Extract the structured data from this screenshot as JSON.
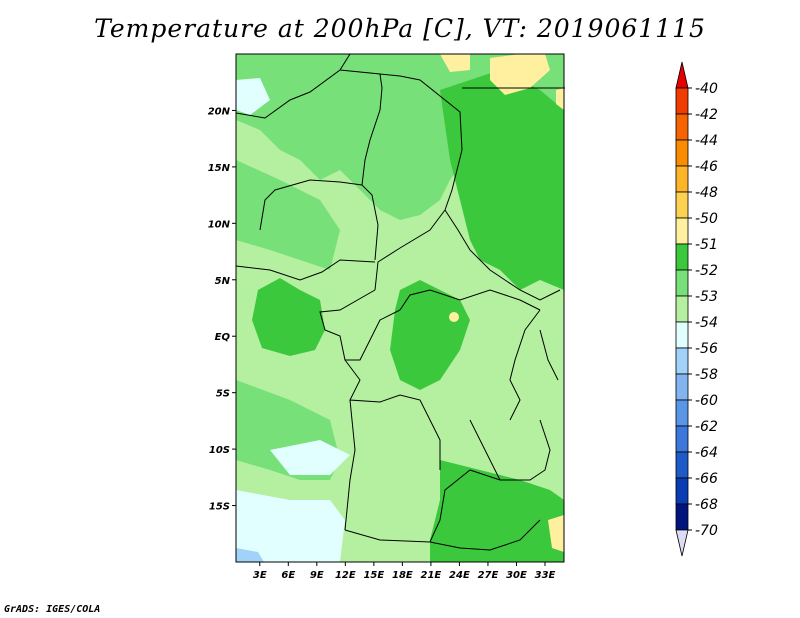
{
  "title": "Temperature at 200hPa [C], VT: 2019061115",
  "credit": "GrADS: IGES/COLA",
  "lat_labels": [
    "20N",
    "15N",
    "10N",
    "5N",
    "EQ",
    "5S",
    "10S",
    "15S"
  ],
  "lat_values": [
    20,
    15,
    10,
    5,
    0,
    -5,
    -10,
    -15
  ],
  "lon_labels": [
    "3E",
    "6E",
    "9E",
    "12E",
    "15E",
    "18E",
    "21E",
    "24E",
    "27E",
    "30E",
    "33E"
  ],
  "lon_values": [
    3,
    6,
    9,
    12,
    15,
    18,
    21,
    24,
    27,
    30,
    33
  ],
  "map_extent": {
    "lon": [
      0.5,
      35
    ],
    "lat": [
      -20,
      25
    ]
  },
  "colorbar": {
    "labels": [
      "-40",
      "-42",
      "-44",
      "-46",
      "-48",
      "-50",
      "-51",
      "-52",
      "-53",
      "-54",
      "-56",
      "-58",
      "-60",
      "-62",
      "-64",
      "-66",
      "-68",
      "-70"
    ],
    "colors": [
      "#e60000",
      "#f03c00",
      "#f56400",
      "#fa8c00",
      "#fdb428",
      "#fdd250",
      "#fff0a0",
      "#3cc83c",
      "#78e078",
      "#b4f0a0",
      "#e1ffff",
      "#a0d2fa",
      "#82b4f0",
      "#5a96e6",
      "#3c78dc",
      "#1e5ac8",
      "#0a3cb4",
      "#00147d",
      "#dcdcf5"
    ]
  }
}
